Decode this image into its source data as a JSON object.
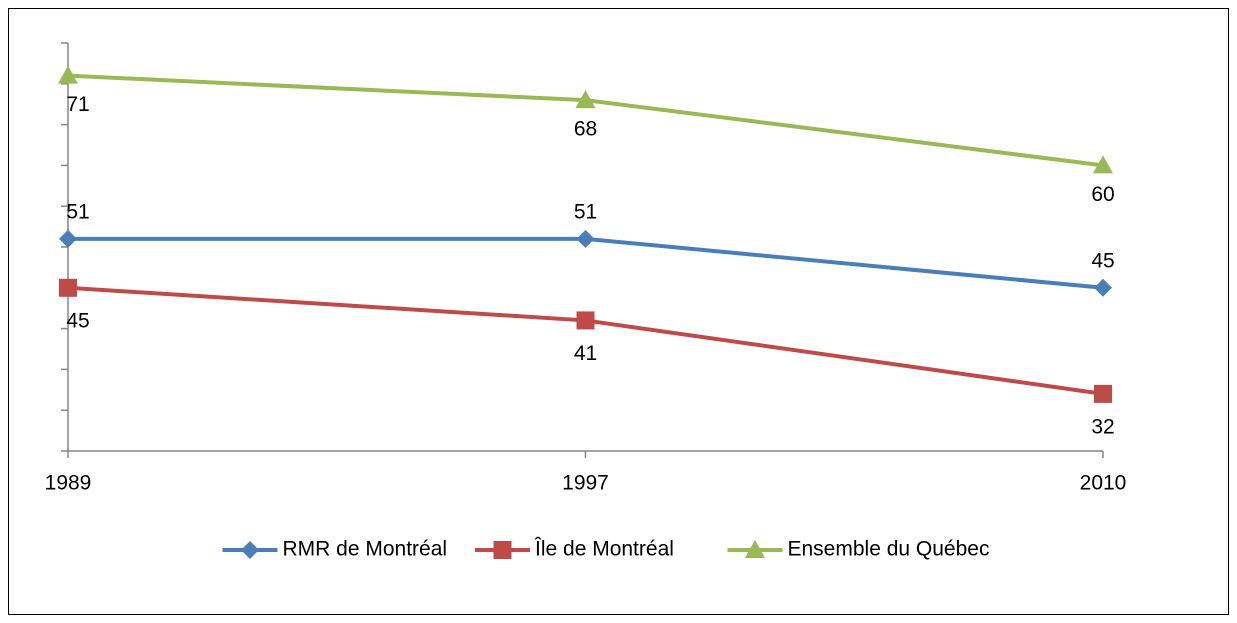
{
  "chart_data": {
    "type": "line",
    "categories": [
      "1989",
      "1997",
      "2010"
    ],
    "series": [
      {
        "name": "RMR de Montréal",
        "color": "#4a7ebb",
        "marker": "diamond",
        "values": [
          51,
          51,
          45
        ]
      },
      {
        "name": "Île de Montréal",
        "color": "#be4b48",
        "marker": "square",
        "values": [
          45,
          41,
          32
        ]
      },
      {
        "name": "Ensemble du Québec",
        "color": "#98b954",
        "marker": "triangle",
        "values": [
          71,
          68,
          60
        ]
      }
    ],
    "ylim": [
      25,
      75
    ],
    "yticks": [
      25,
      30,
      35,
      40,
      45,
      50,
      55,
      60,
      65,
      70,
      75
    ],
    "legend": "bottom"
  }
}
